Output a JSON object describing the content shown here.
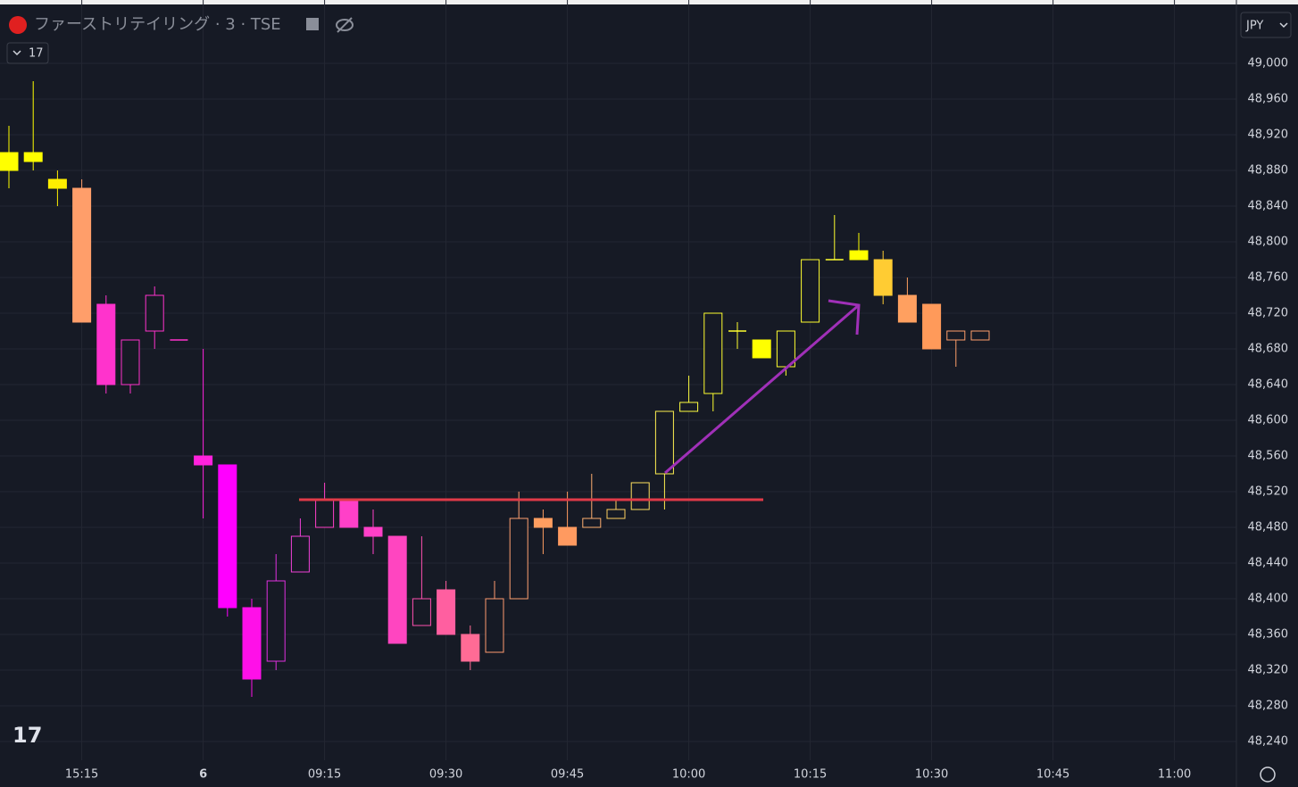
{
  "header": {
    "symbol": "ファーストリテイリング · 3 · TSE",
    "interval": "17",
    "currency": "JPY"
  },
  "chart_data": {
    "type": "candlestick",
    "categories": [
      null,
      null,
      null,
      "15:15",
      null,
      null,
      null,
      null,
      "6",
      null,
      null,
      null,
      null,
      "09:15",
      null,
      null,
      null,
      null,
      "09:30",
      null,
      null,
      null,
      null,
      "09:45",
      null,
      null,
      null,
      null,
      "10:00",
      null,
      null,
      null,
      null,
      "10:15",
      null,
      null,
      null,
      null,
      "10:30",
      null,
      null,
      null,
      null,
      "10:45",
      null,
      null,
      null,
      null,
      "11:00"
    ],
    "open": [
      48900,
      48900,
      48870,
      48860,
      48730,
      48640,
      48700,
      48690,
      48560,
      48550,
      48390,
      48330,
      48430,
      48480,
      48510,
      48480,
      48470,
      48370,
      48410,
      48360,
      48340,
      48400,
      48490,
      48480,
      48480,
      48490,
      48500,
      48540,
      48610,
      48630,
      48700,
      48690,
      48660,
      48710,
      48780,
      48790,
      48780,
      48740,
      48730,
      48690,
      48690,
      null,
      null,
      null,
      null,
      null,
      null,
      null,
      null
    ],
    "high": [
      48930,
      48980,
      48880,
      48870,
      48740,
      48690,
      48750,
      48690,
      48680,
      48550,
      48400,
      48450,
      48490,
      48530,
      48510,
      48500,
      48470,
      48470,
      48420,
      48370,
      48420,
      48520,
      48500,
      48520,
      48540,
      48510,
      48530,
      48610,
      48650,
      48720,
      48710,
      48690,
      48700,
      48780,
      48830,
      48810,
      48790,
      48760,
      48730,
      48700,
      48700,
      null,
      null,
      null,
      null,
      null,
      null,
      null,
      null
    ],
    "low": [
      48860,
      48880,
      48840,
      48710,
      48630,
      48630,
      48680,
      48690,
      48490,
      48380,
      48290,
      48320,
      48430,
      48480,
      48480,
      48450,
      48350,
      48370,
      48360,
      48320,
      48340,
      48400,
      48450,
      48460,
      48480,
      48490,
      48500,
      48500,
      48610,
      48610,
      48680,
      48670,
      48650,
      48710,
      48780,
      48780,
      48730,
      48710,
      48680,
      48660,
      48690,
      null,
      null,
      null,
      null,
      null,
      null,
      null,
      null
    ],
    "close": [
      48880,
      48890,
      48860,
      48710,
      48640,
      48690,
      48740,
      48690,
      48550,
      48390,
      48310,
      48420,
      48470,
      48510,
      48480,
      48470,
      48350,
      48400,
      48360,
      48330,
      48400,
      48490,
      48480,
      48460,
      48490,
      48500,
      48530,
      48610,
      48620,
      48720,
      48700,
      48670,
      48700,
      48780,
      48780,
      48780,
      48740,
      48710,
      48680,
      48700,
      48700,
      null,
      null,
      null,
      null,
      null,
      null,
      null,
      null
    ],
    "colors": [
      "#ffff00",
      "#ffff00",
      "#ffee00",
      "#ff9e6a",
      "#ff33cc",
      "#ff33cc",
      "#ff33cc",
      "#ff33cc",
      "#ff22dd",
      "#ff00ff",
      "#ff10e8",
      "#e030e0",
      "#f040d8",
      "#ff40c8",
      "#ff40c8",
      "#ff40c8",
      "#ff45c0",
      "#ff50b0",
      "#ff5fa0",
      "#ff6b95",
      "#ff9a70",
      "#ffa070",
      "#ff9e60",
      "#ff9a60",
      "#ffb070",
      "#ffd060",
      "#ffe060",
      "#fff050",
      "#ffff40",
      "#ffff30",
      "#ffff30",
      "#ffff00",
      "#ffff30",
      "#ffff30",
      "#ffff30",
      "#ffff00",
      "#ffcc33",
      "#ffa060",
      "#ff9a5a",
      "#ff9e6a",
      "#ff9e6a",
      null,
      null,
      null,
      null,
      null,
      null,
      null,
      null
    ],
    "ylim": [
      48210,
      49030
    ],
    "yticks": [
      {
        "value": 49000,
        "label": "49,000"
      },
      {
        "value": 48960,
        "label": "48,960"
      },
      {
        "value": 48920,
        "label": "48,920"
      },
      {
        "value": 48880,
        "label": "48,880"
      },
      {
        "value": 48840,
        "label": "48,840"
      },
      {
        "value": 48800,
        "label": "48,800"
      },
      {
        "value": 48760,
        "label": "48,760"
      },
      {
        "value": 48720,
        "label": "48,720"
      },
      {
        "value": 48680,
        "label": "48,680"
      },
      {
        "value": 48640,
        "label": "48,640"
      },
      {
        "value": 48600,
        "label": "48,600"
      },
      {
        "value": 48560,
        "label": "48,560"
      },
      {
        "value": 48520,
        "label": "48,520"
      },
      {
        "value": 48480,
        "label": "48,480"
      },
      {
        "value": 48440,
        "label": "48,440"
      },
      {
        "value": 48400,
        "label": "48,400"
      },
      {
        "value": 48360,
        "label": "48,360"
      },
      {
        "value": 48320,
        "label": "48,320"
      },
      {
        "value": 48280,
        "label": "48,280"
      },
      {
        "value": 48240,
        "label": "48,240"
      }
    ],
    "grid": true
  }
}
